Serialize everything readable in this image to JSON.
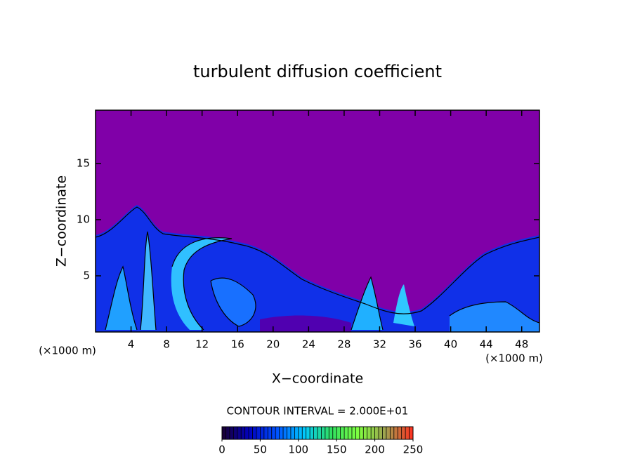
{
  "chart_data": {
    "type": "contour",
    "title": "turbulent diffusion coefficient",
    "x_label": "X−coordinate",
    "y_label": "Z−coordinate",
    "x_unit": "(×1000 m)",
    "xlim": [
      0,
      50
    ],
    "xticks": [
      4,
      8,
      12,
      16,
      20,
      24,
      28,
      32,
      36,
      40,
      44,
      48
    ],
    "ylim": [
      0,
      19.75
    ],
    "yticks": [
      5,
      10,
      15
    ],
    "contour_label": "CONTOUR INTERVAL = 2.000E+01",
    "colorbar": {
      "lim": [
        0,
        250
      ],
      "ticks": [
        0,
        50,
        100,
        150,
        200,
        250
      ],
      "colors": [
        "#1a0030",
        "#0000c0",
        "#0050ff",
        "#00c8ff",
        "#30e060",
        "#80ff40",
        "#a0a050",
        "#ff3020"
      ]
    }
  }
}
